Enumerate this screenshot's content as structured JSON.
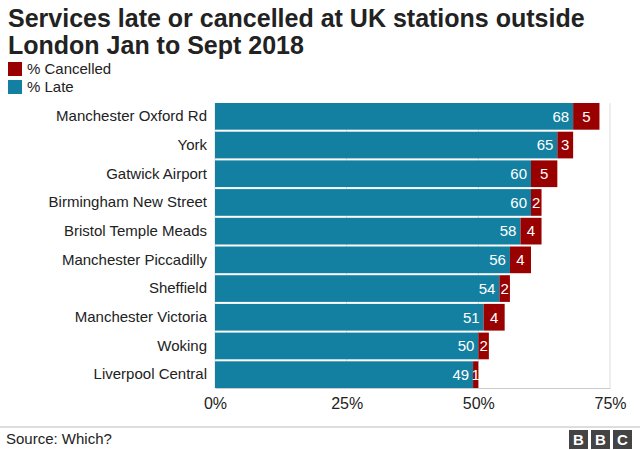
{
  "chart_data": {
    "type": "bar",
    "orientation": "horizontal",
    "stacked": true,
    "title": "Services late or cancelled at UK stations outside London Jan to Sept 2018",
    "categories": [
      "Manchester Oxford Rd",
      "York",
      "Gatwick Airport",
      "Birmingham New Street",
      "Bristol Temple Meads",
      "Manchester Piccadilly",
      "Sheffield",
      "Manchester Victoria",
      "Woking",
      "Liverpool Central"
    ],
    "series": [
      {
        "name": "% Late",
        "color": "#1380a1",
        "values": [
          68,
          65,
          60,
          60,
          58,
          56,
          54,
          51,
          50,
          49
        ]
      },
      {
        "name": "% Cancelled",
        "color": "#990000",
        "values": [
          5,
          3,
          5,
          2,
          4,
          4,
          2,
          4,
          2,
          1
        ]
      }
    ],
    "xlim": [
      0,
      75
    ],
    "xticks": [
      {
        "value": 0,
        "label": "0%"
      },
      {
        "value": 25,
        "label": "25%"
      },
      {
        "value": 50,
        "label": "50%"
      },
      {
        "value": 75,
        "label": "75%"
      }
    ],
    "grid": true,
    "legend": "top-left",
    "data_labels": true,
    "source": "Source: Which?",
    "logo": "BBC"
  }
}
